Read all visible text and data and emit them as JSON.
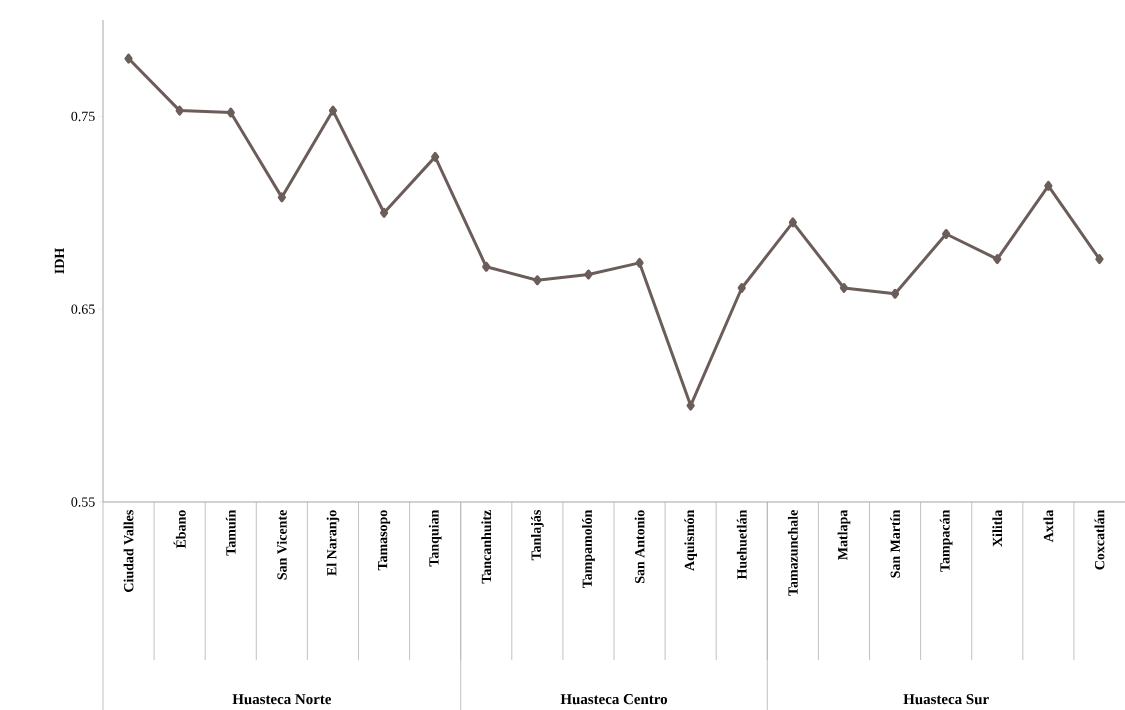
{
  "chart_data": {
    "type": "line",
    "ylabel": "IDH",
    "categories": [
      "Ciudad Valles",
      "Ébano",
      "Tamuín",
      "San Vicente",
      "El Naranjo",
      "Tamasopo",
      "Tanquian",
      "Tancanhuitz",
      "Tanlajás",
      "Tampamolón",
      "San Antonio",
      "Aquismón",
      "Huehuetlán",
      "Tamazunchale",
      "Matlapa",
      "San Martín",
      "Tampacán",
      "Xilitla",
      "Axtla",
      "Coxcatlán"
    ],
    "series": [
      {
        "color": "#6b5d59",
        "values": [
          0.78,
          0.753,
          0.752,
          0.708,
          0.753,
          0.7,
          0.729,
          0.672,
          0.665,
          0.668,
          0.674,
          0.6,
          0.661,
          0.695,
          0.661,
          0.658,
          0.689,
          0.676,
          0.714,
          0.676
        ]
      }
    ],
    "ylim": [
      0.55,
      0.8
    ],
    "yticks": [
      0.55,
      0.65,
      0.75
    ],
    "marker": "diamond",
    "line_style": "solid",
    "annotations": [
      "Huasteca Norte",
      "Huasteca Centro",
      "Huasteca Sur"
    ]
  }
}
